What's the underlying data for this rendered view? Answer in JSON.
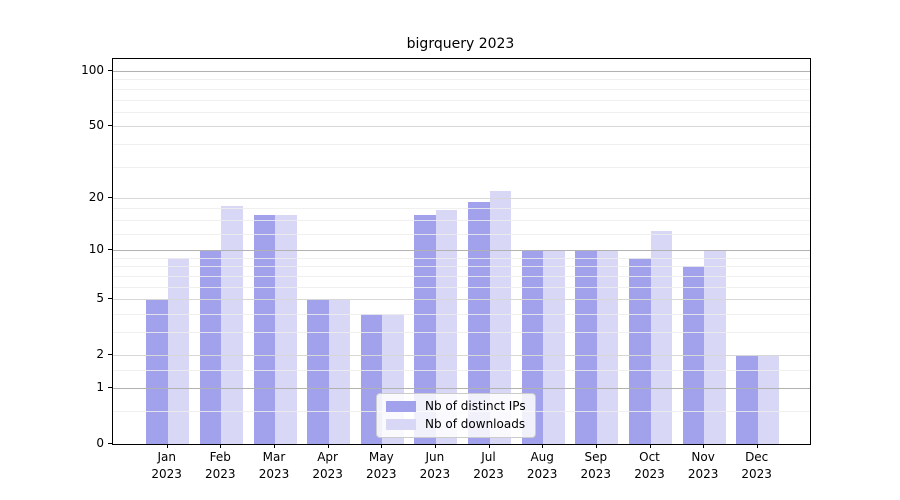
{
  "chart_data": {
    "type": "bar",
    "title": "bigrquery 2023",
    "categories": [
      "Jan",
      "Feb",
      "Mar",
      "Apr",
      "May",
      "Jun",
      "Jul",
      "Aug",
      "Sep",
      "Oct",
      "Nov",
      "Dec"
    ],
    "year": "2023",
    "series": [
      {
        "name": "Nb of distinct IPs",
        "color": "#a2a2ec",
        "values": [
          5,
          10,
          16,
          5,
          4,
          16,
          19,
          10,
          10,
          9,
          8,
          2
        ]
      },
      {
        "name": "Nb of downloads",
        "color": "#d8d8f6",
        "values": [
          9,
          18,
          16,
          5,
          4,
          17,
          22,
          10,
          10,
          13,
          10,
          2
        ]
      }
    ],
    "yscale": "log10(1+v)",
    "yticks": [
      0,
      1,
      2,
      5,
      10,
      20,
      50,
      100
    ],
    "ylim": [
      0,
      115
    ],
    "grid": true,
    "legend_position": "lower center"
  }
}
